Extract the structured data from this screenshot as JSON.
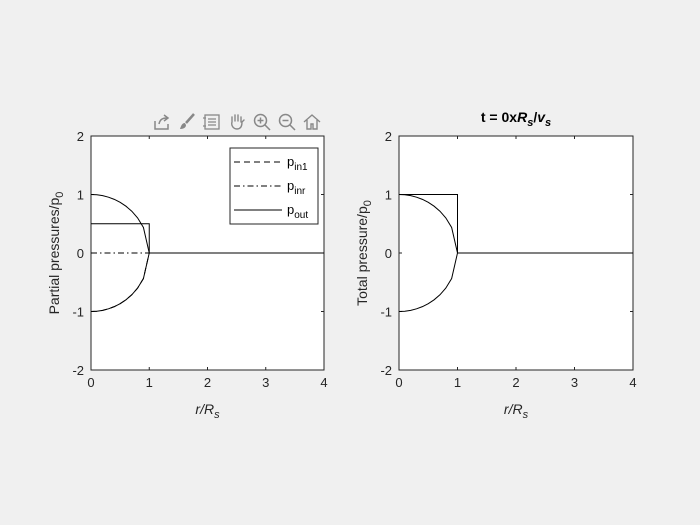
{
  "toolbar": {
    "items": [
      "export-icon",
      "brush-icon",
      "legend-icon",
      "pan-icon",
      "zoom-in-icon",
      "zoom-out-icon",
      "home-icon"
    ]
  },
  "colors": {
    "figure_bg": "#f0f0f0",
    "axes_bg": "#ffffff",
    "ink": "#000000",
    "toolbar_icon": "#888888"
  },
  "chart_data": [
    {
      "type": "line",
      "title": "",
      "xlabel_main": "r/R",
      "xlabel_sub": "s",
      "ylabel_main": "Partial pressures/p",
      "ylabel_sub": "0",
      "xlim": [
        0,
        4
      ],
      "ylim": [
        -2,
        2
      ],
      "xticks": [
        "0",
        "1",
        "2",
        "3",
        "4"
      ],
      "yticks": [
        "-2",
        "-1",
        "0",
        "1",
        "2"
      ],
      "grid": false,
      "legend_position": "top-right",
      "legend": [
        {
          "main": "p",
          "sub": "in1",
          "style": "dashed"
        },
        {
          "main": "p",
          "sub": "inr",
          "style": "dashdot"
        },
        {
          "main": "p",
          "sub": "out",
          "style": "solid"
        }
      ],
      "series": [
        {
          "name": "p_in1",
          "style": "dashed",
          "x": [
            0,
            0.1,
            0.2,
            0.3,
            0.4,
            0.5,
            0.6,
            0.7,
            0.8,
            0.9,
            1.0,
            1.0,
            4.0
          ],
          "y": [
            -1.0,
            -0.995,
            -0.98,
            -0.954,
            -0.917,
            -0.866,
            -0.8,
            -0.714,
            -0.6,
            -0.436,
            0,
            0,
            0
          ]
        },
        {
          "name": "p_inr",
          "style": "dashdot",
          "x": [
            0,
            1,
            4
          ],
          "y": [
            0,
            0,
            0
          ]
        },
        {
          "name": "p_out",
          "style": "solid",
          "x": [
            0,
            1,
            1,
            4
          ],
          "y": [
            0.5,
            0.5,
            0,
            0
          ]
        },
        {
          "name": "upper arc",
          "style": "solid",
          "x": [
            0,
            0.1,
            0.2,
            0.3,
            0.4,
            0.5,
            0.6,
            0.7,
            0.8,
            0.9,
            1.0
          ],
          "y": [
            1.0,
            0.995,
            0.98,
            0.954,
            0.917,
            0.866,
            0.8,
            0.714,
            0.6,
            0.436,
            0
          ]
        },
        {
          "name": "lower arc",
          "style": "solid",
          "x": [
            0,
            0.1,
            0.2,
            0.3,
            0.4,
            0.5,
            0.6,
            0.7,
            0.8,
            0.9,
            1.0
          ],
          "y": [
            -1.0,
            -0.995,
            -0.98,
            -0.954,
            -0.917,
            -0.866,
            -0.8,
            -0.714,
            -0.6,
            -0.436,
            0
          ]
        }
      ]
    },
    {
      "type": "line",
      "title": "t = 0xR_s/v_s",
      "title_parts": [
        "t = 0x",
        "R",
        "s",
        "/",
        "v",
        "s"
      ],
      "xlabel_main": "r/R",
      "xlabel_sub": "s",
      "ylabel_main": "Total pressure/p",
      "ylabel_sub": "0",
      "xlim": [
        0,
        4
      ],
      "ylim": [
        -2,
        2
      ],
      "xticks": [
        "0",
        "1",
        "2",
        "3",
        "4"
      ],
      "yticks": [
        "-2",
        "-1",
        "0",
        "1",
        "2"
      ],
      "grid": false,
      "series": [
        {
          "name": "total pressure",
          "style": "solid",
          "x": [
            0,
            1,
            1,
            4
          ],
          "y": [
            1,
            1,
            0,
            0
          ]
        },
        {
          "name": "upper arc",
          "style": "solid",
          "x": [
            0,
            0.1,
            0.2,
            0.3,
            0.4,
            0.5,
            0.6,
            0.7,
            0.8,
            0.9,
            1.0
          ],
          "y": [
            1.0,
            0.995,
            0.98,
            0.954,
            0.917,
            0.866,
            0.8,
            0.714,
            0.6,
            0.436,
            0
          ]
        },
        {
          "name": "lower arc",
          "style": "solid",
          "x": [
            0,
            0.1,
            0.2,
            0.3,
            0.4,
            0.5,
            0.6,
            0.7,
            0.8,
            0.9,
            1.0
          ],
          "y": [
            -1.0,
            -0.995,
            -0.98,
            -0.954,
            -0.917,
            -0.866,
            -0.8,
            -0.714,
            -0.6,
            -0.436,
            0
          ]
        }
      ]
    }
  ]
}
